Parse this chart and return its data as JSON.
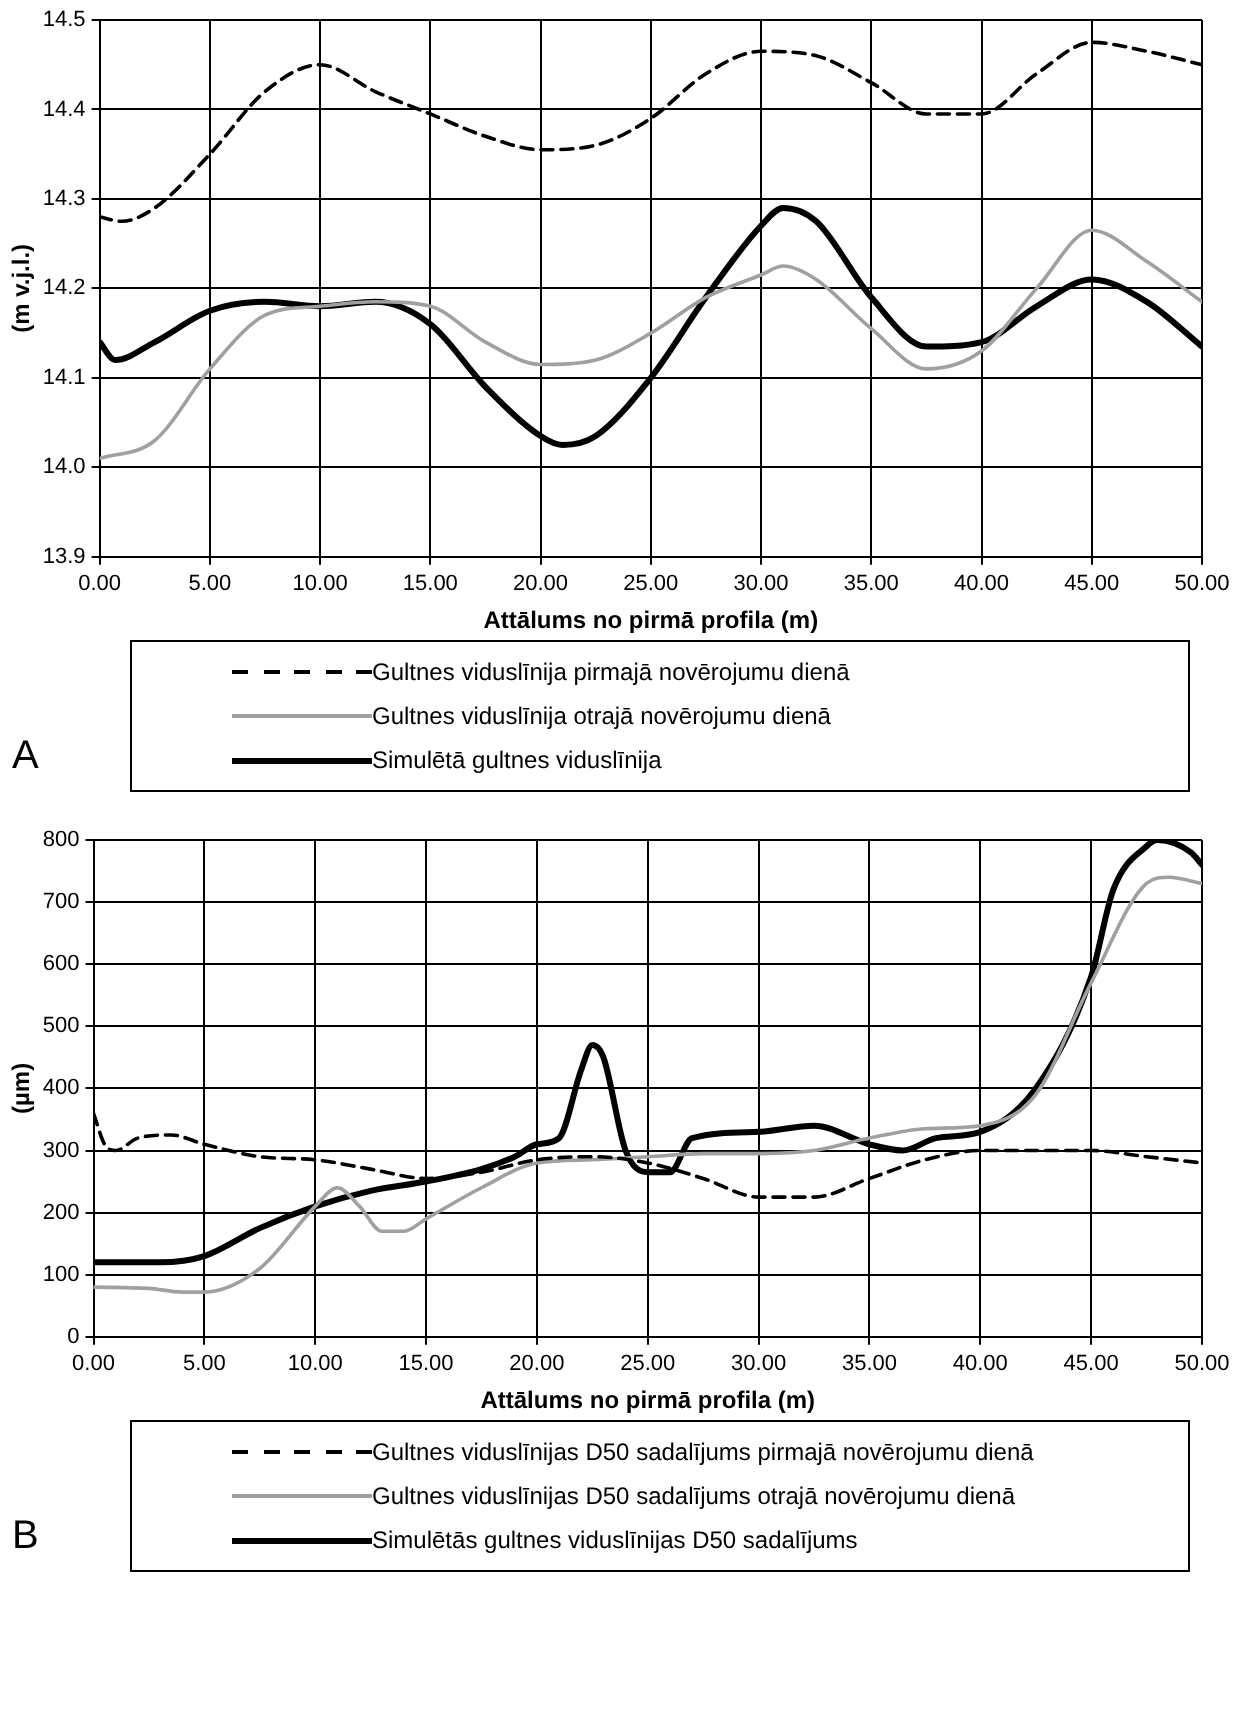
{
  "chart_data": [
    {
      "type": "line",
      "xlabel": "Attālums no pirmā profila (m)",
      "ylabel": "(m v.j.l.)",
      "annotations": [
        "A"
      ],
      "legend": "bottom",
      "grid": true,
      "marker": "none",
      "xlim": [
        0,
        50
      ],
      "xticks": [
        {
          "value": 0,
          "label": "0.00"
        },
        {
          "value": 5,
          "label": "5.00"
        },
        {
          "value": 10,
          "label": "10.00"
        },
        {
          "value": 15,
          "label": "15.00"
        },
        {
          "value": 20,
          "label": "20.00"
        },
        {
          "value": 25,
          "label": "25.00"
        },
        {
          "value": 30,
          "label": "30.00"
        },
        {
          "value": 35,
          "label": "35.00"
        },
        {
          "value": 40,
          "label": "40.00"
        },
        {
          "value": 45,
          "label": "45.00"
        },
        {
          "value": 50,
          "label": "50.00"
        }
      ],
      "ylim": [
        13.9,
        14.5
      ],
      "yticks": [
        13.9,
        {
          "value": 14.0,
          "label": "14.0"
        },
        14.1,
        14.2,
        14.3,
        14.4,
        14.5
      ],
      "series": [
        {
          "name": "Gultnes viduslīnija pirmajā novērojumu dienā",
          "color": "#000000",
          "line_style": "dashed",
          "x": [
            0,
            1,
            2.5,
            5,
            7.5,
            10,
            12.5,
            15,
            17.5,
            20,
            22.5,
            25,
            27.5,
            30,
            32.5,
            35,
            37.5,
            40,
            42.5,
            45,
            47.5,
            50
          ],
          "values": [
            14.28,
            14.275,
            14.29,
            14.35,
            14.42,
            14.45,
            14.42,
            14.395,
            14.37,
            14.355,
            14.36,
            14.39,
            14.44,
            14.465,
            14.46,
            14.43,
            14.395,
            14.395,
            14.44,
            14.475,
            14.465,
            14.45
          ]
        },
        {
          "name": "Gultnes viduslīnija otrajā novērojumu dienā",
          "color": "#a0a0a0",
          "line_style": "solid",
          "x": [
            0,
            2.5,
            5,
            7.5,
            10,
            12.5,
            15,
            17.5,
            20,
            22.5,
            25,
            27.5,
            30,
            31,
            32.5,
            35,
            37.5,
            40,
            42.5,
            45,
            47.5,
            50
          ],
          "values": [
            14.01,
            14.03,
            14.11,
            14.17,
            14.18,
            14.185,
            14.18,
            14.14,
            14.115,
            14.12,
            14.15,
            14.19,
            14.215,
            14.225,
            14.21,
            14.155,
            14.11,
            14.13,
            14.2,
            14.265,
            14.23,
            14.185
          ]
        },
        {
          "name": "Simulētā gultnes viduslīnija",
          "color": "#000000",
          "line_style": "solid",
          "x": [
            0,
            0.7,
            2.5,
            5,
            7.5,
            10,
            12.5,
            15,
            17.5,
            20,
            21,
            22.5,
            25,
            27.5,
            30,
            31,
            32.5,
            35,
            37.5,
            40,
            42.5,
            45,
            47.5,
            50
          ],
          "values": [
            14.14,
            14.12,
            14.14,
            14.175,
            14.185,
            14.18,
            14.185,
            14.16,
            14.09,
            14.035,
            14.025,
            14.035,
            14.1,
            14.19,
            14.27,
            14.29,
            14.275,
            14.19,
            14.135,
            14.14,
            14.18,
            14.21,
            14.185,
            14.135
          ]
        }
      ]
    },
    {
      "type": "line",
      "xlabel": "Attālums no pirmā profila (m)",
      "ylabel": "(µm)",
      "annotations": [
        "B"
      ],
      "legend": "bottom",
      "grid": true,
      "marker": "none",
      "xlim": [
        0,
        50
      ],
      "xticks": [
        {
          "value": 0,
          "label": "0.00"
        },
        {
          "value": 5,
          "label": "5.00"
        },
        {
          "value": 10,
          "label": "10.00"
        },
        {
          "value": 15,
          "label": "15.00"
        },
        {
          "value": 20,
          "label": "20.00"
        },
        {
          "value": 25,
          "label": "25.00"
        },
        {
          "value": 30,
          "label": "30.00"
        },
        {
          "value": 35,
          "label": "35.00"
        },
        {
          "value": 40,
          "label": "40.00"
        },
        {
          "value": 45,
          "label": "45.00"
        },
        {
          "value": 50,
          "label": "50.00"
        }
      ],
      "ylim": [
        0,
        800
      ],
      "yticks": [
        0,
        100,
        200,
        300,
        400,
        500,
        600,
        700,
        800
      ],
      "series": [
        {
          "name": "Gultnes viduslīnijas D50 sadalījums pirmajā novērojumu dienā",
          "color": "#000000",
          "line_style": "dashed",
          "x": [
            0,
            0.5,
            1,
            2,
            3.5,
            5,
            7.5,
            10,
            12.5,
            15,
            17.5,
            20,
            22.5,
            25,
            27.5,
            30,
            32.5,
            35,
            37.5,
            40,
            42.5,
            45,
            47.5,
            50
          ],
          "values": [
            360,
            310,
            300,
            320,
            325,
            310,
            290,
            285,
            270,
            255,
            265,
            285,
            290,
            280,
            255,
            225,
            225,
            255,
            285,
            300,
            300,
            300,
            290,
            280
          ]
        },
        {
          "name": "Gultnes viduslīnijas D50 sadalījums otrajā novērojumu dienā",
          "color": "#a0a0a0",
          "line_style": "solid",
          "x": [
            0,
            2.5,
            4,
            5,
            7.5,
            10,
            11,
            12,
            13,
            14,
            15,
            17.5,
            20,
            22.5,
            25,
            27.5,
            30,
            32.5,
            35,
            37.5,
            40,
            42.5,
            45,
            47.5,
            48.5,
            50
          ],
          "values": [
            80,
            78,
            72,
            72,
            110,
            210,
            240,
            210,
            170,
            170,
            190,
            240,
            280,
            285,
            290,
            295,
            295,
            300,
            320,
            335,
            340,
            390,
            570,
            730,
            740,
            730
          ]
        },
        {
          "name": "Simulētās gultnes viduslīnijas D50 sadalījums",
          "color": "#000000",
          "line_style": "solid",
          "x": [
            0,
            3,
            5,
            7.5,
            10,
            12.5,
            15,
            17.5,
            19,
            20,
            21,
            22,
            22.5,
            23,
            24,
            25,
            26,
            27,
            30,
            32.5,
            35,
            36.5,
            38,
            40,
            42.5,
            45,
            46,
            47.5,
            48,
            49.5,
            50
          ],
          "values": [
            120,
            120,
            130,
            175,
            210,
            235,
            250,
            270,
            290,
            310,
            320,
            430,
            470,
            450,
            300,
            265,
            265,
            320,
            330,
            340,
            310,
            300,
            320,
            330,
            400,
            580,
            720,
            790,
            800,
            780,
            760
          ]
        }
      ]
    }
  ]
}
